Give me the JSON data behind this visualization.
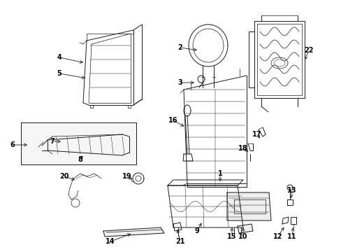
{
  "background_color": "#ffffff",
  "line_color": "#1a1a1a",
  "label_color": "#000000",
  "fig_width": 4.89,
  "fig_height": 3.6,
  "dpi": 100,
  "fontsize": 7.0
}
